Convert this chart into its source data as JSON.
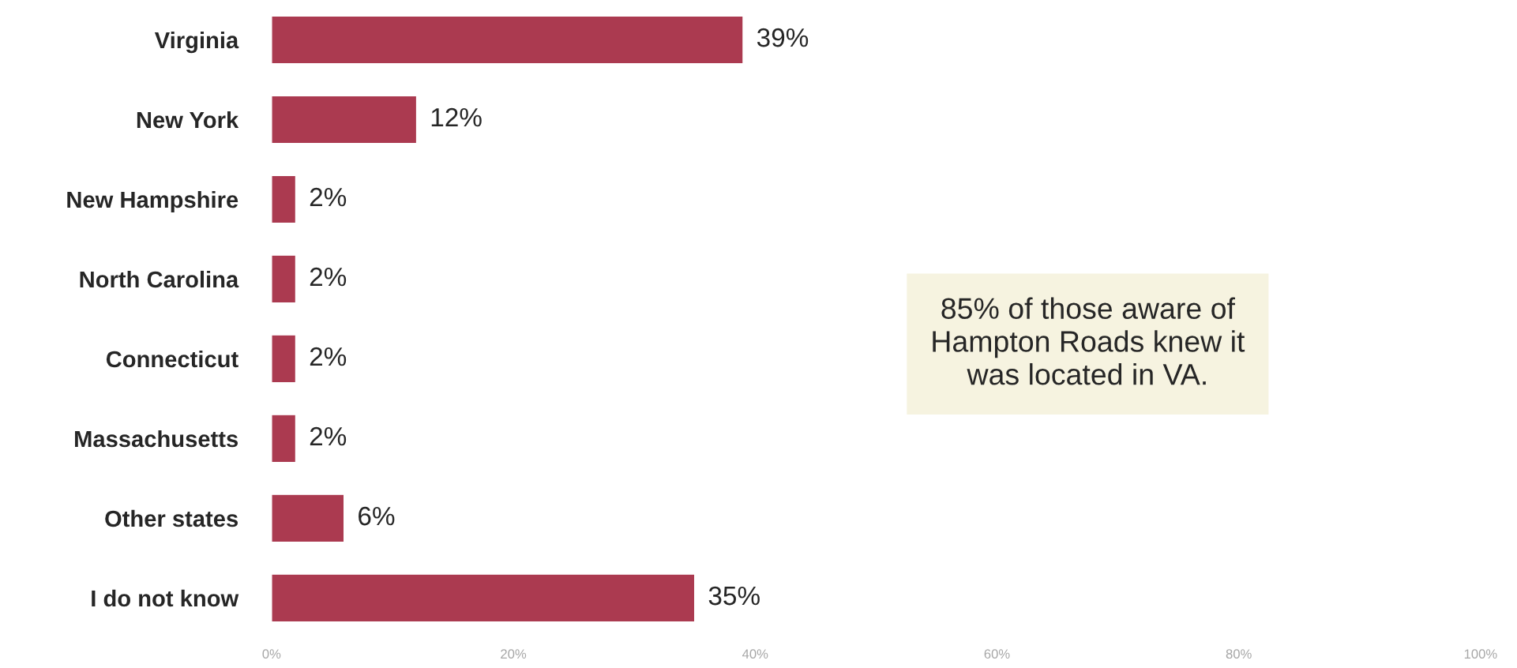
{
  "chart_data": {
    "type": "bar",
    "orientation": "horizontal",
    "categories": [
      "Virginia",
      "New York",
      "New Hampshire",
      "North Carolina",
      "Connecticut",
      "Massachusetts",
      "Other states",
      "I do not know"
    ],
    "values": [
      39,
      12,
      2,
      2,
      2,
      2,
      6,
      35
    ],
    "value_labels": [
      "39%",
      "12%",
      "2%",
      "2%",
      "2%",
      "2%",
      "6%",
      "35%"
    ],
    "color": "#ab3a50",
    "xlim": [
      0,
      100
    ],
    "xticks": [
      {
        "value": 0,
        "label": "0%"
      },
      {
        "value": 20,
        "label": "20%"
      },
      {
        "value": 40,
        "label": "40%"
      },
      {
        "value": 60,
        "label": "60%"
      },
      {
        "value": 80,
        "label": "80%"
      },
      {
        "value": 100,
        "label": "100%"
      }
    ],
    "grid": false,
    "legend": false,
    "annotations": [
      "85% of those aware of\nHampton Roads knew it\nwas located in VA."
    ]
  }
}
